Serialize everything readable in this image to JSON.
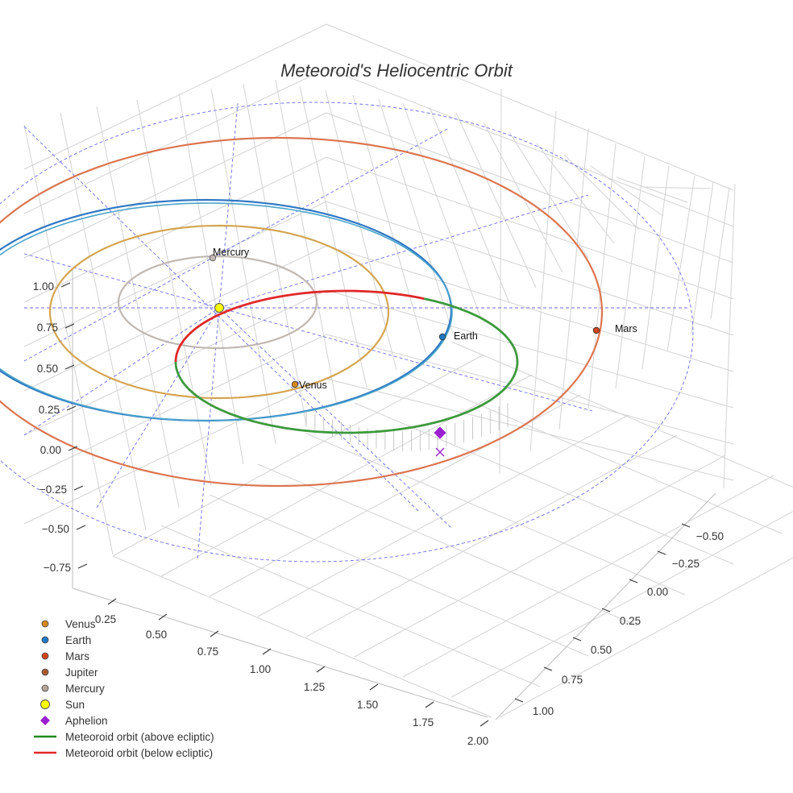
{
  "chart_data": {
    "type": "scatter3d",
    "title": "Meteoroid's Heliocentric Orbit",
    "axes": {
      "vertical": {
        "ticks": [
          "1.00",
          "0.75",
          "0.50",
          "0.25",
          "0.00",
          "−0.25",
          "−0.50",
          "−0.75"
        ]
      },
      "front": {
        "ticks": [
          "0.25",
          "0.50",
          "0.75",
          "1.00",
          "1.25",
          "1.50",
          "1.75",
          "2.00"
        ]
      },
      "side": {
        "ticks": [
          "−0.50",
          "−0.25",
          "0.00",
          "0.25",
          "0.50",
          "0.75",
          "1.00"
        ]
      }
    },
    "planet_labels": {
      "mercury": "Mercury",
      "venus": "Venus",
      "earth": "Earth",
      "mars": "Mars"
    },
    "colors": {
      "mercury": "#c0b8b2",
      "venus": "#d4a550",
      "earth_blue": "#2f78c4",
      "earth_cyan": "#4aa5cc",
      "mars": "#dc7550",
      "sun": "#ffff00",
      "aphelion": "#9b20d0",
      "above": "#3d9a3d",
      "below": "#e02828",
      "guide": "#6a6aec"
    },
    "legend": [
      {
        "label": "Venus",
        "marker": "circle",
        "color": "#d58a1e"
      },
      {
        "label": "Earth",
        "marker": "circle",
        "color": "#2079c2"
      },
      {
        "label": "Mars",
        "marker": "circle",
        "color": "#d2441c"
      },
      {
        "label": "Jupiter",
        "marker": "circle",
        "color": "#a75a30"
      },
      {
        "label": "Mercury",
        "marker": "circle",
        "color": "#b7a49a"
      },
      {
        "label": "Sun",
        "marker": "circle-large",
        "color": "#ffff00"
      },
      {
        "label": "Aphelion",
        "marker": "diamond",
        "color": "#9b20d0"
      },
      {
        "label": "Meteoroid orbit (above ecliptic)",
        "marker": "line",
        "color": "#1f8a1f"
      },
      {
        "label": "Meteoroid orbit (below ecliptic)",
        "marker": "line",
        "color": "#e02828"
      }
    ]
  }
}
